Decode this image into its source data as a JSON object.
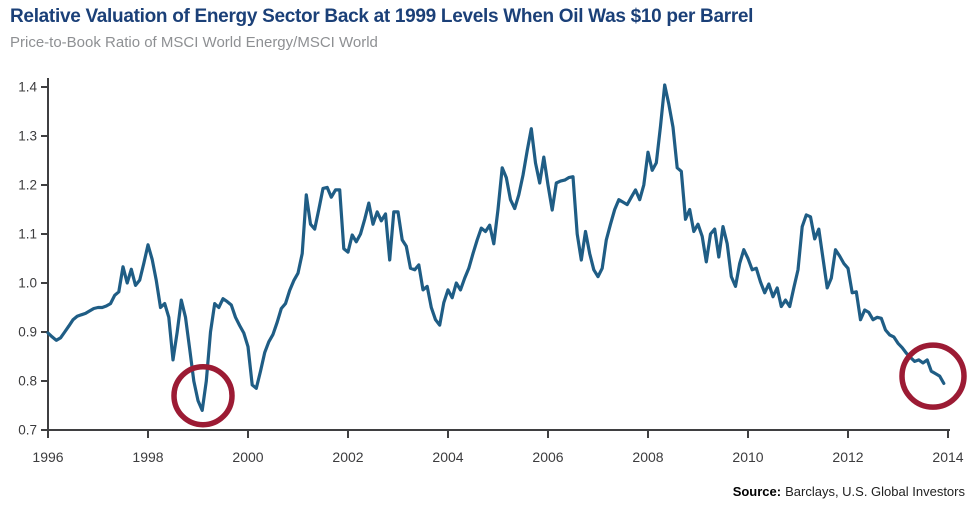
{
  "header": {
    "title": "Relative Valuation of Energy Sector Back at 1999 Levels When Oil Was $10 per Barrel",
    "subtitle": "Price-to-Book Ratio of MSCI World Energy/MSCI World"
  },
  "footer": {
    "source_label": "Source:",
    "source_text": "Barclays, U.S. Global Investors"
  },
  "colors": {
    "title": "#1b4078",
    "subtitle": "#8e9093",
    "axis": "#3f3f41",
    "tick_label": "#3c3c3e",
    "line": "#1f5d85",
    "annotation": "#9c1b34"
  },
  "chart_data": {
    "type": "line",
    "title": "Relative Valuation of Energy Sector Back at 1999 Levels When Oil Was $10 per Barrel",
    "subtitle": "Price-to-Book Ratio of MSCI World Energy/MSCI World",
    "xlabel": "",
    "ylabel": "",
    "grid": false,
    "legend": "none",
    "xlim": [
      1996,
      2014
    ],
    "ylim": [
      0.7,
      1.4
    ],
    "x_ticks": [
      1996,
      1998,
      2000,
      2002,
      2004,
      2006,
      2008,
      2010,
      2012,
      2014
    ],
    "y_ticks": [
      0.7,
      0.8,
      0.9,
      1.0,
      1.1,
      1.2,
      1.3,
      1.4
    ],
    "series": [
      {
        "name": "MSCI World Energy / MSCI World price-to-book ratio",
        "frequency": "monthly",
        "x_start_year": 1996,
        "points_per_year": 12,
        "values": [
          0.898,
          0.89,
          0.883,
          0.888,
          0.9,
          0.912,
          0.925,
          0.932,
          0.935,
          0.938,
          0.943,
          0.948,
          0.95,
          0.95,
          0.953,
          0.958,
          0.975,
          0.982,
          1.033,
          1.0,
          1.028,
          0.995,
          1.006,
          1.04,
          1.078,
          1.048,
          1.005,
          0.95,
          0.958,
          0.93,
          0.843,
          0.9,
          0.965,
          0.93,
          0.865,
          0.8,
          0.76,
          0.74,
          0.8,
          0.9,
          0.958,
          0.95,
          0.968,
          0.962,
          0.955,
          0.93,
          0.913,
          0.898,
          0.87,
          0.792,
          0.785,
          0.82,
          0.858,
          0.88,
          0.895,
          0.92,
          0.948,
          0.958,
          0.985,
          1.005,
          1.02,
          1.06,
          1.18,
          1.12,
          1.11,
          1.15,
          1.193,
          1.195,
          1.175,
          1.19,
          1.19,
          1.07,
          1.063,
          1.098,
          1.084,
          1.1,
          1.13,
          1.163,
          1.12,
          1.145,
          1.127,
          1.141,
          1.047,
          1.145,
          1.145,
          1.088,
          1.075,
          1.03,
          1.027,
          1.037,
          0.986,
          0.993,
          0.95,
          0.925,
          0.914,
          0.96,
          0.986,
          0.97,
          1.0,
          0.986,
          1.01,
          1.03,
          1.06,
          1.088,
          1.112,
          1.105,
          1.118,
          1.08,
          1.15,
          1.235,
          1.215,
          1.17,
          1.152,
          1.18,
          1.22,
          1.27,
          1.315,
          1.245,
          1.204,
          1.257,
          1.2,
          1.149,
          1.204,
          1.208,
          1.21,
          1.215,
          1.217,
          1.1,
          1.047,
          1.105,
          1.06,
          1.027,
          1.013,
          1.03,
          1.088,
          1.12,
          1.15,
          1.17,
          1.165,
          1.16,
          1.175,
          1.19,
          1.17,
          1.2,
          1.267,
          1.23,
          1.245,
          1.32,
          1.404,
          1.365,
          1.318,
          1.235,
          1.228,
          1.13,
          1.15,
          1.105,
          1.12,
          1.095,
          1.043,
          1.1,
          1.11,
          1.053,
          1.115,
          1.08,
          1.013,
          0.993,
          1.04,
          1.068,
          1.05,
          1.027,
          1.03,
          1.002,
          0.98,
          0.998,
          0.972,
          0.99,
          0.952,
          0.965,
          0.952,
          0.99,
          1.027,
          1.115,
          1.139,
          1.135,
          1.09,
          1.11,
          1.05,
          0.99,
          1.01,
          1.068,
          1.055,
          1.04,
          1.03,
          0.98,
          0.982,
          0.925,
          0.945,
          0.94,
          0.925,
          0.93,
          0.928,
          0.904,
          0.894,
          0.89,
          0.877,
          0.868,
          0.857,
          0.848,
          0.84,
          0.843,
          0.837,
          0.843,
          0.82,
          0.815,
          0.81,
          0.795
        ]
      }
    ],
    "annotations": [
      {
        "name": "circled-low-1999",
        "x_year": 1999.1,
        "center_value": 0.77,
        "radius": 29
      },
      {
        "name": "circled-low-2013",
        "x_year": 2013.7,
        "center_value": 0.81,
        "radius": 31
      }
    ]
  }
}
